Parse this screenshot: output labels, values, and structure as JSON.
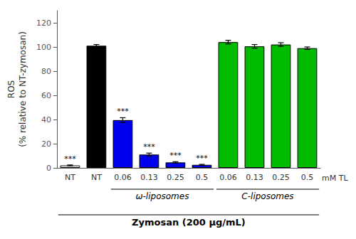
{
  "chart_data": {
    "type": "bar",
    "ylabel": "ROS\n(% relative to NT-zymosan)",
    "categories": [
      "NT",
      "NT",
      "0.06",
      "0.13",
      "0.25",
      "0.5",
      "0.06",
      "0.13",
      "0.25",
      "0.5"
    ],
    "values": [
      2.0,
      101.0,
      39.5,
      11.0,
      4.5,
      2.5,
      104.0,
      100.5,
      102.0,
      99.0
    ],
    "errors": [
      0.4,
      1.0,
      2.0,
      1.2,
      0.6,
      0.4,
      1.5,
      1.5,
      1.5,
      1.0
    ],
    "colors": [
      "white",
      "black",
      "#0000ee",
      "#0000ee",
      "#0000ee",
      "#0000ee",
      "#00bb00",
      "#00bb00",
      "#00bb00",
      "#00bb00"
    ],
    "significance": [
      "***",
      null,
      "***",
      "***",
      "***",
      "***",
      null,
      null,
      null,
      null
    ],
    "ylim": [
      0,
      130
    ],
    "yticks": [
      0,
      20,
      40,
      60,
      80,
      100,
      120
    ],
    "grid": false,
    "x_unit_label": "mM TL",
    "groups": [
      {
        "label": "ω-liposomes",
        "from": 2,
        "to": 5
      },
      {
        "label": "C-liposomes",
        "from": 6,
        "to": 9
      }
    ],
    "bottom_label": "Zymosan (200 μg/mL)"
  }
}
